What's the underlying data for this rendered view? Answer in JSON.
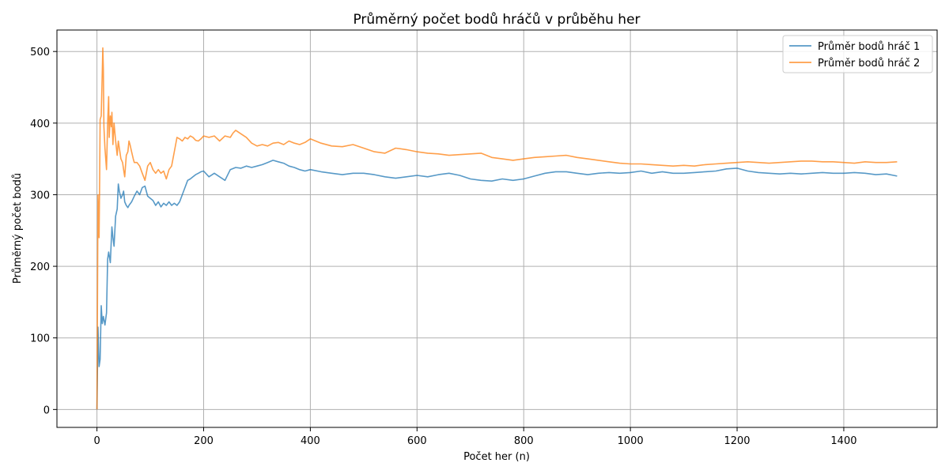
{
  "chart_data": {
    "type": "line",
    "title": "Průměrný počet bodů hráčů v průběhu her",
    "xlabel": "Počet her (n)",
    "ylabel": "Průměrný počet bodů",
    "xlim": [
      -75,
      1575
    ],
    "ylim": [
      -25,
      530
    ],
    "xticks": [
      0,
      200,
      400,
      600,
      800,
      1000,
      1200,
      1400
    ],
    "yticks": [
      0,
      100,
      200,
      300,
      400,
      500
    ],
    "grid": true,
    "legend_position": "top-right",
    "series": [
      {
        "name": "Průměr bodů hráč 1",
        "color": "#1f77b4",
        "x": [
          0,
          2,
          4,
          6,
          8,
          10,
          12,
          15,
          18,
          20,
          22,
          25,
          28,
          30,
          32,
          35,
          38,
          40,
          42,
          45,
          48,
          50,
          52,
          55,
          58,
          60,
          65,
          70,
          75,
          80,
          85,
          90,
          95,
          100,
          105,
          110,
          115,
          120,
          125,
          130,
          135,
          140,
          145,
          150,
          155,
          160,
          165,
          170,
          175,
          180,
          185,
          190,
          195,
          200,
          210,
          220,
          230,
          240,
          250,
          260,
          270,
          280,
          290,
          300,
          310,
          320,
          330,
          340,
          350,
          360,
          370,
          380,
          390,
          400,
          420,
          440,
          460,
          480,
          500,
          520,
          540,
          560,
          580,
          600,
          620,
          640,
          660,
          680,
          700,
          720,
          740,
          760,
          780,
          800,
          820,
          840,
          860,
          880,
          900,
          920,
          940,
          960,
          980,
          1000,
          1020,
          1040,
          1060,
          1080,
          1100,
          1120,
          1140,
          1160,
          1180,
          1200,
          1220,
          1240,
          1260,
          1280,
          1300,
          1320,
          1340,
          1360,
          1380,
          1400,
          1420,
          1440,
          1460,
          1480,
          1500
        ],
        "y": [
          0,
          115,
          60,
          70,
          145,
          120,
          130,
          118,
          135,
          210,
          220,
          205,
          255,
          240,
          228,
          270,
          280,
          315,
          305,
          295,
          300,
          305,
          290,
          285,
          282,
          285,
          290,
          298,
          305,
          300,
          310,
          312,
          298,
          295,
          292,
          285,
          290,
          283,
          288,
          285,
          290,
          285,
          288,
          285,
          290,
          300,
          310,
          320,
          322,
          325,
          328,
          330,
          332,
          333,
          325,
          330,
          325,
          320,
          335,
          338,
          337,
          340,
          338,
          340,
          342,
          345,
          348,
          346,
          344,
          340,
          338,
          335,
          333,
          335,
          332,
          330,
          328,
          330,
          330,
          328,
          325,
          323,
          325,
          327,
          325,
          328,
          330,
          327,
          322,
          320,
          319,
          322,
          320,
          322,
          326,
          330,
          332,
          332,
          330,
          328,
          330,
          331,
          330,
          331,
          333,
          330,
          332,
          330,
          330,
          331,
          332,
          333,
          336,
          337,
          333,
          331,
          330,
          329,
          330,
          329,
          330,
          331,
          330,
          330,
          331,
          330,
          328,
          329,
          326
        ]
      },
      {
        "name": "Průměr bodů hráč 2",
        "color": "#ff7f0e",
        "x": [
          0,
          2,
          4,
          5,
          6,
          8,
          10,
          11,
          12,
          13,
          15,
          18,
          20,
          22,
          23,
          25,
          27,
          28,
          30,
          32,
          35,
          38,
          40,
          42,
          45,
          48,
          50,
          52,
          55,
          58,
          60,
          62,
          65,
          68,
          70,
          75,
          80,
          85,
          90,
          95,
          100,
          105,
          110,
          115,
          120,
          125,
          130,
          135,
          140,
          145,
          150,
          155,
          160,
          165,
          170,
          175,
          180,
          185,
          190,
          195,
          200,
          210,
          220,
          230,
          240,
          250,
          255,
          260,
          270,
          280,
          290,
          300,
          310,
          320,
          330,
          340,
          350,
          360,
          370,
          380,
          390,
          400,
          420,
          440,
          460,
          480,
          500,
          520,
          540,
          560,
          580,
          600,
          620,
          640,
          660,
          680,
          700,
          720,
          740,
          760,
          780,
          800,
          820,
          840,
          860,
          880,
          900,
          920,
          940,
          960,
          980,
          1000,
          1020,
          1040,
          1060,
          1080,
          1100,
          1120,
          1140,
          1160,
          1180,
          1200,
          1220,
          1240,
          1260,
          1280,
          1300,
          1320,
          1340,
          1360,
          1380,
          1400,
          1420,
          1440,
          1460,
          1480,
          1500
        ],
        "y": [
          0,
          300,
          240,
          320,
          405,
          410,
          470,
          505,
          475,
          395,
          365,
          335,
          400,
          437,
          380,
          410,
          395,
          415,
          370,
          400,
          375,
          355,
          375,
          365,
          350,
          345,
          335,
          325,
          355,
          360,
          375,
          370,
          360,
          350,
          345,
          345,
          340,
          330,
          320,
          340,
          345,
          335,
          330,
          335,
          330,
          333,
          322,
          335,
          340,
          360,
          380,
          378,
          375,
          380,
          378,
          382,
          380,
          376,
          375,
          378,
          382,
          380,
          382,
          375,
          382,
          380,
          386,
          390,
          385,
          380,
          372,
          368,
          370,
          368,
          372,
          373,
          370,
          375,
          372,
          370,
          373,
          378,
          372,
          368,
          367,
          370,
          365,
          360,
          358,
          365,
          363,
          360,
          358,
          357,
          355,
          356,
          357,
          358,
          352,
          350,
          348,
          350,
          352,
          353,
          354,
          355,
          352,
          350,
          348,
          346,
          344,
          343,
          343,
          342,
          341,
          340,
          341,
          340,
          342,
          343,
          344,
          345,
          346,
          345,
          344,
          345,
          346,
          347,
          347,
          346,
          346,
          345,
          344,
          346,
          345,
          345,
          346
        ]
      }
    ]
  }
}
